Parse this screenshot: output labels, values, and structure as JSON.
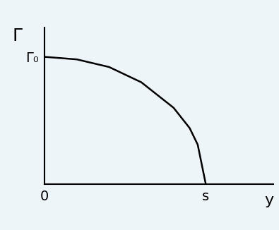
{
  "chart_data": {
    "type": "line",
    "x": [
      0,
      0.2,
      0.4,
      0.6,
      0.8,
      0.9,
      0.95,
      1.0
    ],
    "values": [
      1.0,
      0.98,
      0.92,
      0.8,
      0.6,
      0.44,
      0.31,
      0.0
    ],
    "x_label": "y",
    "y_label": "Γ",
    "xlim": [
      0,
      1.42
    ],
    "ylim": [
      0,
      1.23
    ],
    "xticks": [
      0,
      {
        "value": 1.0,
        "label": "s"
      }
    ],
    "yticks": [
      {
        "value": 1.0,
        "label": "Γ₀"
      }
    ],
    "color": "#000000",
    "grid": false
  }
}
